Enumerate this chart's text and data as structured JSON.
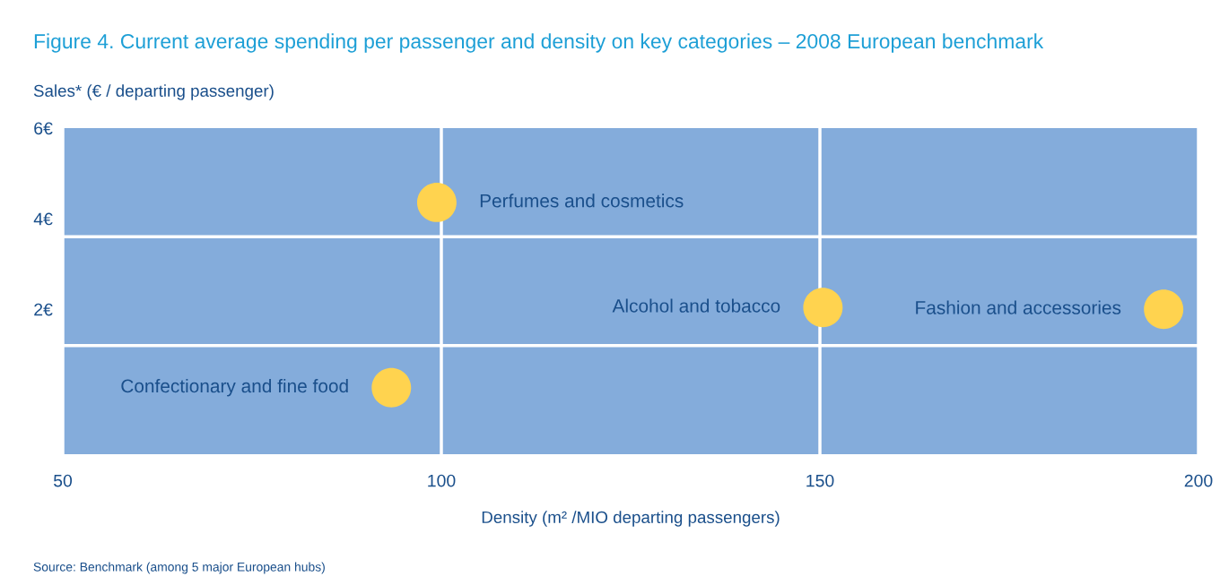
{
  "chart_data": {
    "type": "scatter",
    "title": "Figure 4. Current average spending per passenger and density on key categories – 2008 European benchmark",
    "ylabel": "Sales* (€ / departing passenger)",
    "xlabel": "Density (m² /MIO departing passengers)",
    "series": [
      {
        "color": "#ffd34f",
        "x": [
          99.4,
          150.4,
          195.4,
          93.4
        ],
        "values": [
          4.36,
          2.04,
          2.0,
          0.27
        ]
      }
    ],
    "annotations": [
      {
        "text": "Perfumes and cosmetics",
        "x": 99.4,
        "y": 4.36
      },
      {
        "text": "Alcohol and tobacco",
        "x": 150.4,
        "y": 2.04
      },
      {
        "text": "Fashion and accessories",
        "x": 195.4,
        "y": 2.0
      },
      {
        "text": "Confectionary and fine food",
        "x": 93.4,
        "y": 0.27
      },
      "Source: Benchmark (among 5 major European hubs)"
    ],
    "xlim": [
      50,
      200
    ],
    "xticks": [
      50,
      100,
      150,
      200
    ],
    "ylim": [
      -1.2,
      6
    ],
    "yticks": [
      {
        "value": 2,
        "label": "2€"
      },
      {
        "value": 4,
        "label": "4€"
      },
      {
        "value": 6,
        "label": "6€"
      }
    ],
    "grid": "x",
    "marker": "circle",
    "ref_lines": [
      {
        "axis": "y",
        "value": 3.6,
        "color": "#ffffff"
      },
      {
        "axis": "y",
        "value": 1.2,
        "color": "#ffffff"
      }
    ]
  }
}
